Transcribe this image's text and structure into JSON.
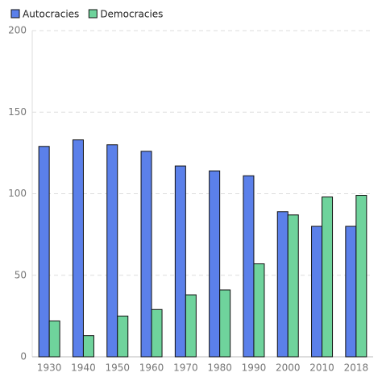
{
  "chart_data": {
    "type": "bar",
    "categories": [
      "1930",
      "1940",
      "1950",
      "1960",
      "1970",
      "1980",
      "1990",
      "2000",
      "2010",
      "2018"
    ],
    "series": [
      {
        "name": "Autocracies",
        "color": "#5b80ea",
        "values": [
          129,
          133,
          130,
          126,
          117,
          114,
          111,
          89,
          80,
          80
        ]
      },
      {
        "name": "Democracies",
        "color": "#6fd39c",
        "values": [
          22,
          13,
          25,
          29,
          38,
          41,
          57,
          87,
          98,
          99
        ]
      }
    ],
    "ylim": [
      0,
      200
    ],
    "yticks": [
      0,
      50,
      100,
      150,
      200
    ],
    "grid": true,
    "legend": "top-left"
  }
}
